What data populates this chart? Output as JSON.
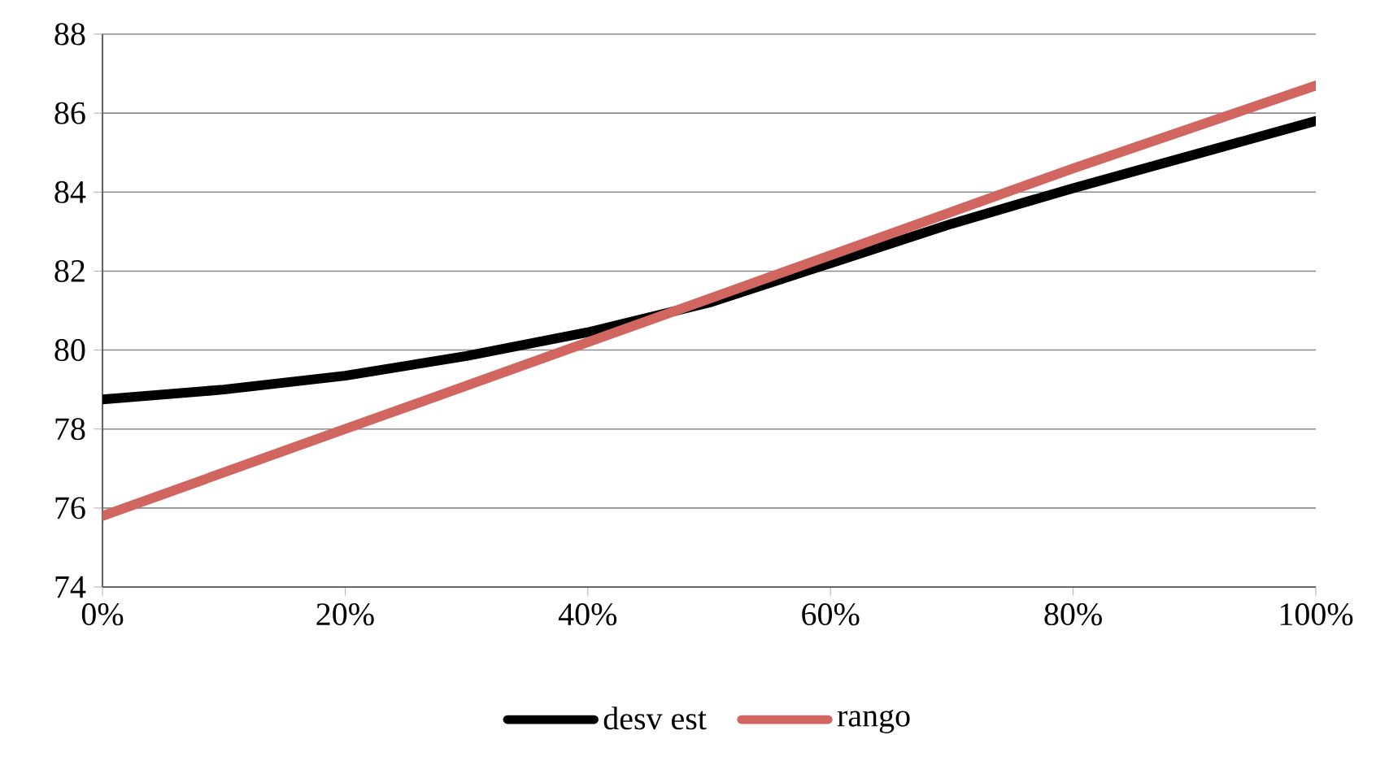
{
  "chart_data": {
    "type": "line",
    "x": [
      0,
      0.1,
      0.2,
      0.3,
      0.4,
      0.5,
      0.6,
      0.7,
      0.8,
      0.9,
      1.0
    ],
    "series": [
      {
        "name": "desv est",
        "color": "#000000",
        "values": [
          78.75,
          79.0,
          79.35,
          79.85,
          80.45,
          81.2,
          82.2,
          83.2,
          84.1,
          84.95,
          85.8
        ]
      },
      {
        "name": "rango",
        "color": "#d0665f",
        "x": [
          0,
          0.2,
          0.4,
          0.6,
          0.8,
          1.0
        ],
        "values": [
          75.8,
          78.0,
          80.2,
          82.4,
          84.6,
          86.7
        ]
      }
    ],
    "xlim": [
      0,
      1
    ],
    "xticks": [
      {
        "value": 0,
        "label": "0%"
      },
      {
        "value": 0.2,
        "label": "20%"
      },
      {
        "value": 0.4,
        "label": "40%"
      },
      {
        "value": 0.6,
        "label": "60%"
      },
      {
        "value": 0.8,
        "label": "80%"
      },
      {
        "value": 1.0,
        "label": "100%"
      }
    ],
    "ylim": [
      74,
      88
    ],
    "yticks": [
      74,
      76,
      78,
      80,
      82,
      84,
      86,
      88
    ],
    "grid": "y",
    "legend": "bottom",
    "marker": "none",
    "line_style": "solid"
  }
}
